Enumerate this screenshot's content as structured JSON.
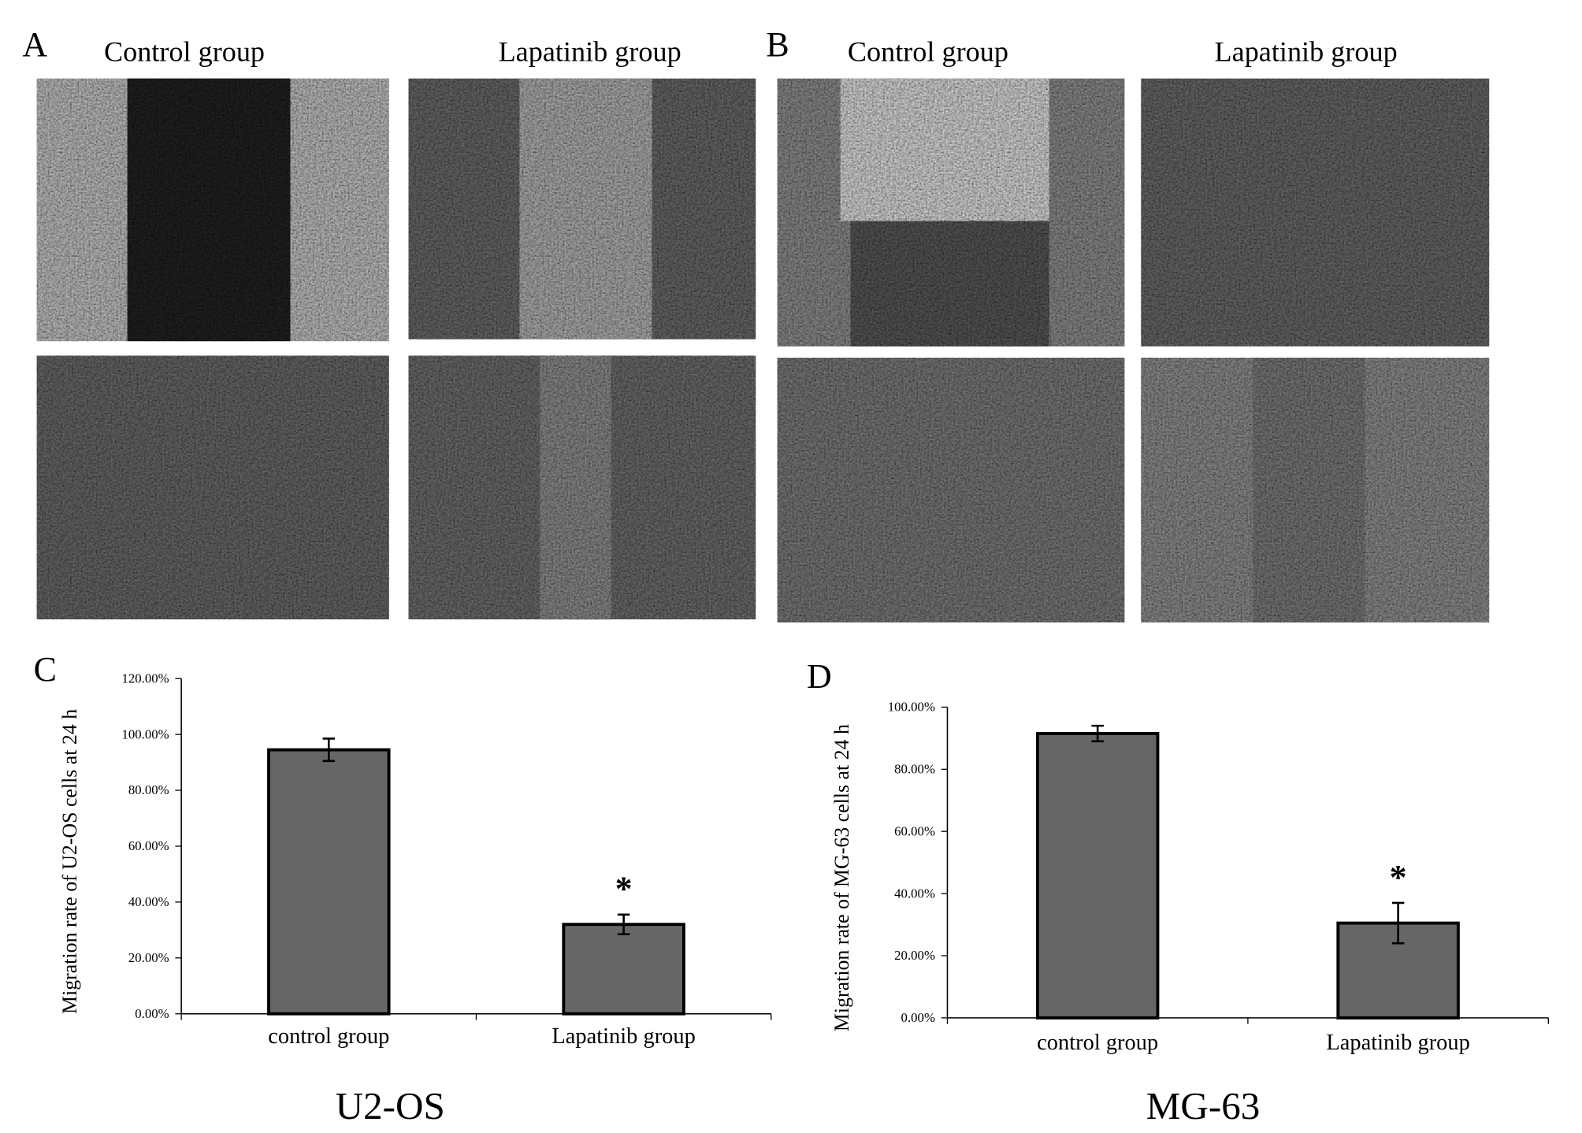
{
  "panels": [
    {
      "label": "A",
      "columns": [
        "Control group",
        "Lapatinib group"
      ]
    },
    {
      "label": "B",
      "columns": [
        "Control group",
        "Lapatinib group"
      ]
    }
  ],
  "chart_data": [
    {
      "type": "bar",
      "panel_label": "C",
      "subtitle": "U2-OS",
      "y_label": "Migration rate of U2-OS cells at 24 h",
      "categories": [
        "control group",
        "Lapatinib group"
      ],
      "values": [
        94.5,
        32
      ],
      "errors": [
        4,
        3.5
      ],
      "color": "#666666",
      "significance": [
        null,
        "*"
      ],
      "ylim": [
        0,
        120
      ],
      "yticks": [
        {
          "value": 0,
          "label": "0.00%"
        },
        {
          "value": 20,
          "label": "20.00%"
        },
        {
          "value": 40,
          "label": "40.00%"
        },
        {
          "value": 60,
          "label": "60.00%"
        },
        {
          "value": 80,
          "label": "80.00%"
        },
        {
          "value": 100,
          "label": "100.00%"
        },
        {
          "value": 120,
          "label": "120.00%"
        }
      ]
    },
    {
      "type": "bar",
      "panel_label": "D",
      "subtitle": "MG-63",
      "y_label": "Migration rate of MG-63 cells at 24 h",
      "categories": [
        "control group",
        "Lapatinib group"
      ],
      "values": [
        91.5,
        30.5
      ],
      "errors": [
        2.5,
        6.5
      ],
      "color": "#666666",
      "significance": [
        null,
        "*"
      ],
      "ylim": [
        0,
        100
      ],
      "yticks": [
        {
          "value": 0,
          "label": "0.00%"
        },
        {
          "value": 20,
          "label": "20.00%"
        },
        {
          "value": 40,
          "label": "40.00%"
        },
        {
          "value": 60,
          "label": "60.00%"
        },
        {
          "value": 80,
          "label": "80.00%"
        },
        {
          "value": 100,
          "label": "100.00%"
        }
      ]
    }
  ]
}
